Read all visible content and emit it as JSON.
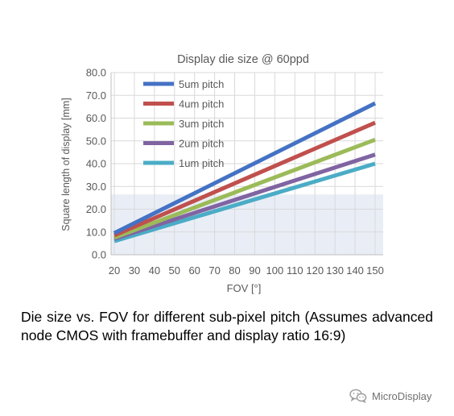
{
  "caption": "Die size vs. FOV for different sub-pixel pitch (Assumes advanced node CMOS with framebuffer and display ratio 16:9)",
  "watermark": {
    "text": "MicroDisplay",
    "icon": "wechat-icon"
  },
  "chart_data": {
    "type": "line",
    "title": "Display die size @ 60ppd",
    "xlabel": "FOV [°]",
    "ylabel": "Square length of display [mm]",
    "xlim": [
      20,
      150
    ],
    "ylim": [
      0,
      80
    ],
    "x_ticks": [
      "20",
      "30",
      "40",
      "50",
      "60",
      "70",
      "80",
      "90",
      "100",
      "110",
      "120",
      "130",
      "140",
      "150"
    ],
    "y_ticks": [
      "0.0",
      "10.0",
      "20.0",
      "30.0",
      "40.0",
      "50.0",
      "60.0",
      "70.0",
      "80.0"
    ],
    "grid": true,
    "legend": "top-left",
    "shaded_band": {
      "from": 0,
      "to": 26.5,
      "color": "#e9eef6"
    },
    "series": [
      {
        "name": "5um pitch",
        "color": "#4472c4",
        "points": [
          [
            20,
            9.5
          ],
          [
            150,
            66.5
          ]
        ]
      },
      {
        "name": "4um pitch",
        "color": "#c0504d",
        "points": [
          [
            20,
            8.5
          ],
          [
            150,
            58.0
          ]
        ]
      },
      {
        "name": "3um pitch",
        "color": "#9bbb59",
        "points": [
          [
            20,
            7.5
          ],
          [
            150,
            50.5
          ]
        ]
      },
      {
        "name": "2um pitch",
        "color": "#8064a2",
        "points": [
          [
            20,
            7.0
          ],
          [
            150,
            44.0
          ]
        ]
      },
      {
        "name": "1um pitch",
        "color": "#4bacc6",
        "points": [
          [
            20,
            6.0
          ],
          [
            150,
            40.0
          ]
        ]
      }
    ]
  }
}
